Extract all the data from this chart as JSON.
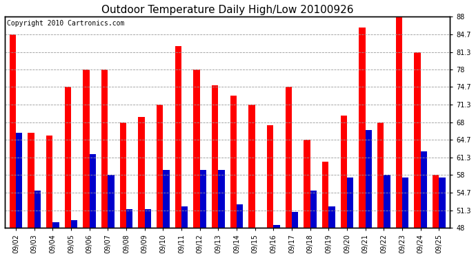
{
  "title": "Outdoor Temperature Daily High/Low 20100926",
  "copyright": "Copyright 2010 Cartronics.com",
  "dates": [
    "09/02",
    "09/03",
    "09/04",
    "09/05",
    "09/06",
    "09/07",
    "09/08",
    "09/09",
    "09/10",
    "09/11",
    "09/12",
    "09/13",
    "09/14",
    "09/15",
    "09/16",
    "09/17",
    "09/18",
    "09/19",
    "09/20",
    "09/21",
    "09/22",
    "09/23",
    "09/24",
    "09/25"
  ],
  "highs": [
    84.7,
    66.0,
    65.5,
    74.7,
    78.0,
    78.0,
    68.0,
    69.0,
    71.3,
    82.5,
    78.0,
    75.0,
    73.0,
    71.3,
    67.5,
    74.7,
    64.7,
    60.5,
    69.3,
    86.0,
    68.0,
    88.0,
    81.3,
    58.0
  ],
  "lows": [
    66.0,
    55.0,
    49.0,
    49.5,
    62.0,
    58.0,
    51.5,
    51.5,
    59.0,
    52.0,
    59.0,
    59.0,
    52.5,
    48.0,
    48.5,
    51.0,
    55.0,
    52.0,
    57.5,
    66.5,
    58.0,
    57.5,
    62.5,
    57.5
  ],
  "high_color": "#ff0000",
  "low_color": "#0000cc",
  "bg_color": "#ffffff",
  "grid_color": "#999999",
  "yticks": [
    48.0,
    51.3,
    54.7,
    58.0,
    61.3,
    64.7,
    68.0,
    71.3,
    74.7,
    78.0,
    81.3,
    84.7,
    88.0
  ],
  "ymin": 48.0,
  "ymax": 88.0,
  "title_fontsize": 11,
  "copyright_fontsize": 7,
  "tick_fontsize": 7,
  "bar_width": 0.35
}
